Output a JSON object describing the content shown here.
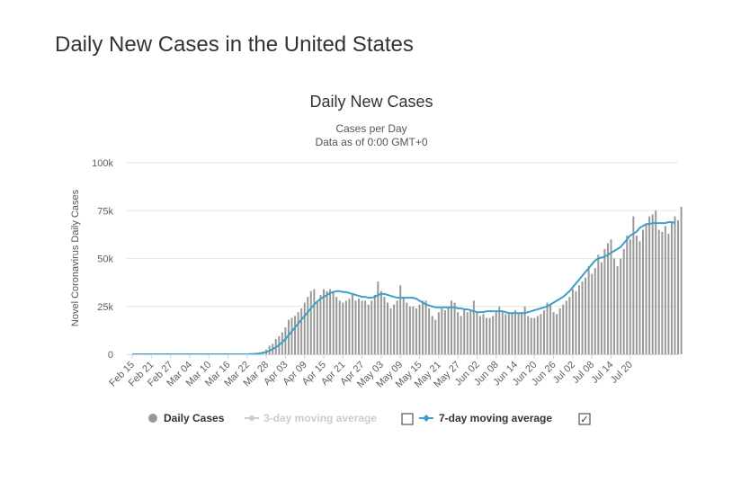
{
  "page_title": "Daily New Cases in the United States",
  "chart_data": {
    "type": "bar",
    "title": "Daily New Cases",
    "subtitle_line1": "Cases per Day",
    "subtitle_line2": "Data as of 0:00 GMT+0",
    "ylabel": "Novel Coronavirus Daily Cases",
    "xlabel": "",
    "ylim": [
      0,
      100000
    ],
    "y_ticks": [
      {
        "value": 0,
        "label": "0"
      },
      {
        "value": 25000,
        "label": "25k"
      },
      {
        "value": 50000,
        "label": "50k"
      },
      {
        "value": 75000,
        "label": "75k"
      },
      {
        "value": 100000,
        "label": "100k"
      }
    ],
    "x_tick_labels": [
      "Feb 15",
      "Feb 21",
      "Feb 27",
      "Mar 04",
      "Mar 10",
      "Mar 16",
      "Mar 22",
      "Mar 28",
      "Apr 03",
      "Apr 09",
      "Apr 15",
      "Apr 21",
      "Apr 27",
      "May 03",
      "May 09",
      "May 15",
      "May 21",
      "May 27",
      "Jun 02",
      "Jun 08",
      "Jun 14",
      "Jun 20",
      "Jun 26",
      "Jul 02",
      "Jul 08",
      "Jul 14",
      "Jul 20"
    ],
    "x_range": [
      "Feb 15",
      "Jul 24"
    ],
    "grid": true,
    "legend_placement": "bottom-center",
    "colors": {
      "bars": "#999999",
      "moving_avg": "#3da0c4",
      "disabled": "#cccccc"
    },
    "daily_cases": [
      0,
      0,
      0,
      0,
      0,
      0,
      0,
      0,
      0,
      0,
      0,
      0,
      0,
      0,
      0,
      0,
      0,
      0,
      0,
      0,
      0,
      0,
      0,
      0,
      0,
      0,
      0,
      0,
      0,
      0,
      3,
      5,
      15,
      25,
      30,
      60,
      100,
      150,
      300,
      600,
      1000,
      1500,
      2500,
      4500,
      5500,
      8000,
      9500,
      11500,
      14000,
      18000,
      19000,
      20000,
      22000,
      24000,
      27000,
      30000,
      33000,
      34000,
      28000,
      31000,
      34000,
      33000,
      34000,
      33000,
      30000,
      28000,
      27000,
      28000,
      29000,
      32000,
      28000,
      29000,
      28000,
      28000,
      26000,
      28000,
      31000,
      38000,
      33000,
      30000,
      27000,
      24000,
      26000,
      28000,
      36000,
      30000,
      27000,
      25000,
      25000,
      24000,
      26000,
      28000,
      28000,
      24000,
      20000,
      18000,
      22000,
      24000,
      23000,
      25000,
      28000,
      27000,
      22000,
      20000,
      24000,
      22000,
      23000,
      28000,
      22000,
      20000,
      21000,
      19000,
      19000,
      20000,
      22000,
      25000,
      22000,
      21000,
      21000,
      22000,
      23000,
      21000,
      22000,
      25000,
      20000,
      19000,
      19000,
      20000,
      21000,
      23000,
      27000,
      26000,
      22000,
      21000,
      24000,
      26000,
      28000,
      30000,
      34000,
      33000,
      36000,
      38000,
      40000,
      46000,
      42000,
      45000,
      52000,
      48000,
      55000,
      58000,
      60000,
      50000,
      46000,
      50000,
      55000,
      62000,
      60000,
      72000,
      62000,
      59000,
      65000,
      68000,
      72000,
      73000,
      75000,
      65000,
      64000,
      67000,
      63000,
      69000,
      72000,
      70000,
      77000
    ],
    "moving_avg_7day": [
      0,
      0,
      0,
      0,
      0,
      0,
      0,
      0,
      0,
      0,
      0,
      0,
      0,
      0,
      0,
      0,
      0,
      0,
      0,
      0,
      0,
      0,
      0,
      0,
      0,
      0,
      0,
      0,
      0,
      0,
      0,
      0,
      0,
      0,
      0,
      5,
      25,
      100,
      150,
      300,
      500,
      800,
      1200,
      1900,
      2700,
      3700,
      4900,
      6300,
      8000,
      10000,
      12000,
      14000,
      16000,
      18000,
      20000,
      22000,
      24000,
      26000,
      27500,
      29000,
      30000,
      31000,
      32000,
      32500,
      33000,
      33000,
      32500,
      32500,
      32000,
      31500,
      31000,
      30500,
      30000,
      30000,
      29500,
      29500,
      30000,
      31000,
      31500,
      31500,
      31000,
      30500,
      30000,
      29500,
      29500,
      29500,
      29500,
      29500,
      29500,
      29000,
      28000,
      27000,
      26000,
      25500,
      25000,
      24500,
      24500,
      24500,
      24500,
      24500,
      24500,
      24500,
      24000,
      24000,
      23500,
      23500,
      23000,
      22500,
      22000,
      22000,
      22000,
      22500,
      22500,
      22500,
      22500,
      22500,
      22500,
      22000,
      21500,
      21500,
      21500,
      21500,
      21500,
      21500,
      22000,
      22500,
      23000,
      23500,
      24000,
      24500,
      25000,
      26000,
      27000,
      28000,
      29000,
      30000,
      31500,
      33000,
      35000,
      37000,
      39000,
      41000,
      43000,
      45000,
      47000,
      49000,
      50000,
      50500,
      51000,
      52000,
      53000,
      54000,
      55000,
      56000,
      58000,
      60000,
      62000,
      63000,
      64000,
      66000,
      67000,
      68000,
      68000,
      68500,
      68500,
      68500,
      68500,
      68500,
      69000,
      69000,
      68500
    ]
  },
  "legend": {
    "items": [
      {
        "label": "Daily Cases",
        "state": "active",
        "color": "#999999"
      },
      {
        "label": "3-day moving average",
        "state": "disabled",
        "color": "#cccccc",
        "checked": false
      },
      {
        "label": "7-day moving average",
        "state": "active",
        "color": "#3da0c4",
        "checked": true
      }
    ],
    "checkbox_checked_glyph": "✓"
  }
}
